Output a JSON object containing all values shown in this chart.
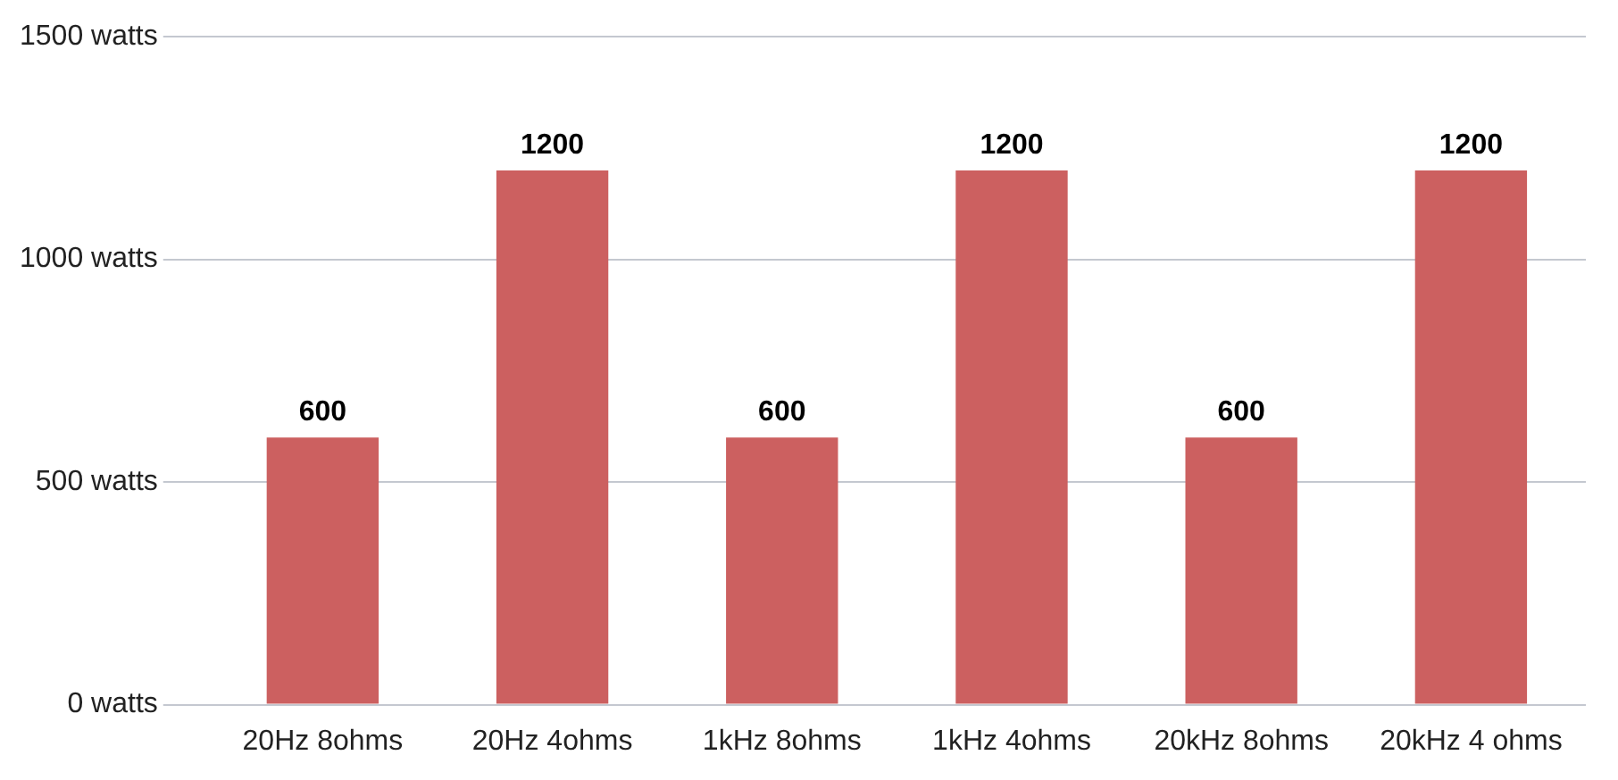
{
  "chart_data": {
    "type": "bar",
    "categories": [
      "20Hz 8ohms",
      "20Hz 4ohms",
      "1kHz 8ohms",
      "1kHz 4ohms",
      "20kHz 8ohms",
      "20kHz 4 ohms"
    ],
    "values": [
      600,
      1200,
      600,
      1200,
      600,
      1200
    ],
    "color": "#cc6060",
    "ylim": [
      0,
      1500
    ],
    "yticks": [
      {
        "value": 0,
        "label": "0 watts"
      },
      {
        "value": 500,
        "label": "500 watts"
      },
      {
        "value": 1000,
        "label": "1000 watts"
      },
      {
        "value": 1500,
        "label": "1500 watts"
      }
    ],
    "grid": "y",
    "data_labels": true
  }
}
